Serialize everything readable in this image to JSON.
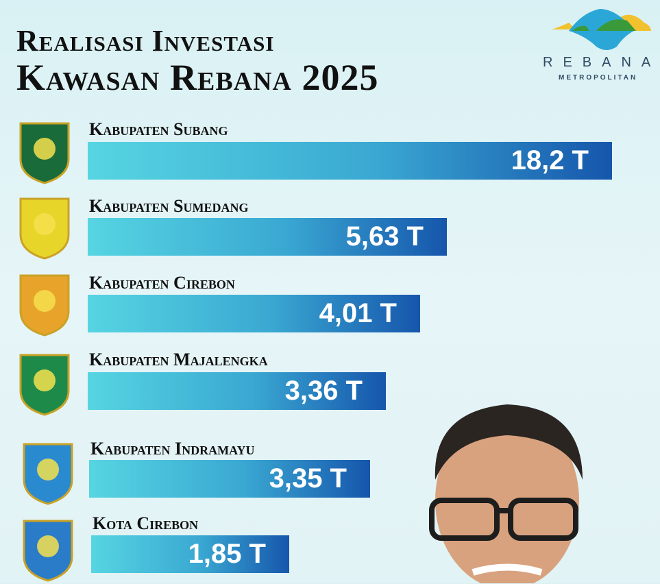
{
  "header": {
    "title_line1": "Realisasi Investasi",
    "title_line2": "Kawasan Rebana 2025"
  },
  "logo": {
    "name": "REBANA",
    "subtitle": "METROPOLITAN",
    "colors": [
      "#2aa7d6",
      "#f2c12e",
      "#3a9a3a"
    ]
  },
  "chart_data": {
    "type": "bar",
    "orientation": "horizontal",
    "title": "Realisasi Investasi Kawasan Rebana 2025",
    "categories": [
      "Kabupaten Subang",
      "Kabupaten Sumedang",
      "Kabupaten Cirebon",
      "Kabupaten Majalengka",
      "Kabupaten Indramayu",
      "Kota Cirebon"
    ],
    "values": [
      18.2,
      5.63,
      4.01,
      3.36,
      3.35,
      1.85
    ],
    "unit": "T",
    "labels": [
      "18,2 T",
      "5,63 T",
      "4,01 T",
      "3,36 T",
      "3,35 T",
      "1,85 T"
    ],
    "bar_gradient": [
      "#56d5e2",
      "#1656ac"
    ]
  }
}
